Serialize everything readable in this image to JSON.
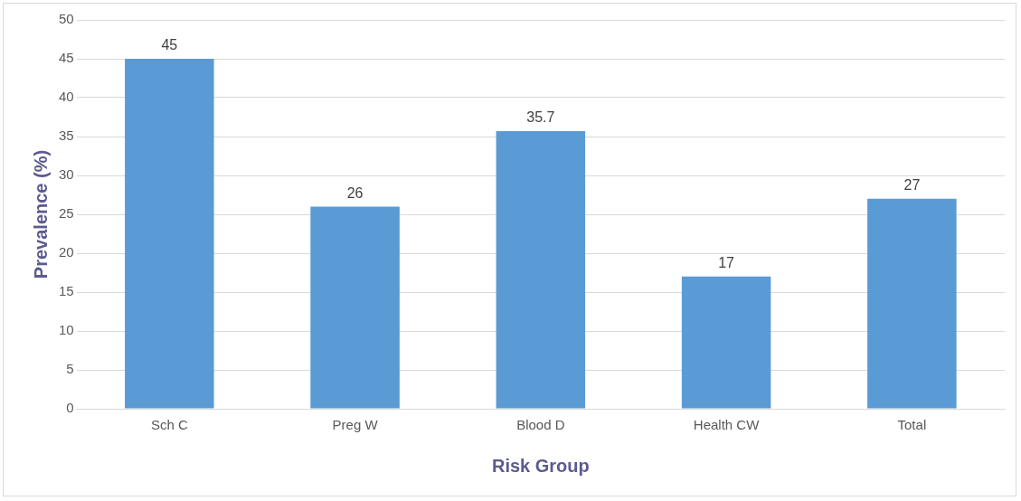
{
  "chart_data": {
    "type": "bar",
    "xlabel": "Risk Group",
    "ylabel": "Prevalence (%)",
    "categories": [
      "Sch C",
      "Preg W",
      "Blood D",
      "Health CW",
      "Total"
    ],
    "values": [
      45,
      26,
      35.7,
      17,
      27
    ],
    "color": "#5b9bd5",
    "ylim": [
      0,
      50
    ],
    "yticks": [
      0,
      5,
      10,
      15,
      20,
      25,
      30,
      35,
      40,
      45,
      50
    ],
    "grid": "y",
    "data_labels": true
  }
}
